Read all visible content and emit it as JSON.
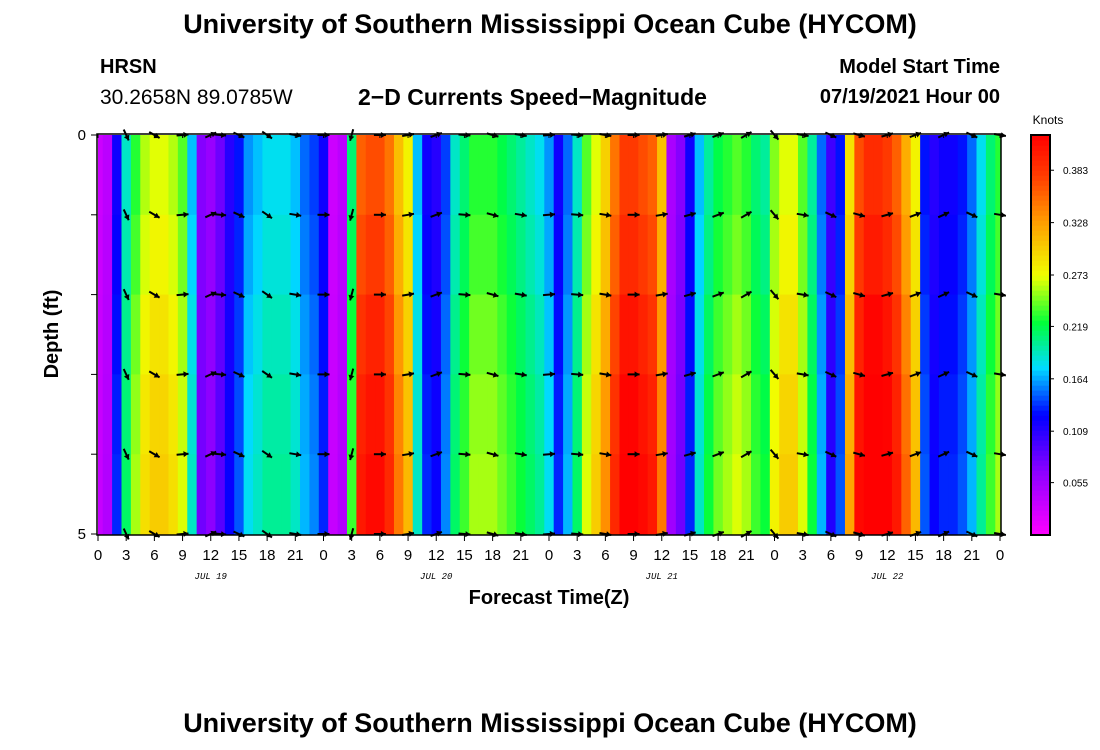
{
  "header": {
    "title": "University of Southern Mississippi Ocean Cube (HYCOM)",
    "footer_title": "University of Southern Mississippi Ocean Cube (HYCOM)",
    "station": "HRSN",
    "coords": "30.2658N  89.0785W",
    "plot_title": "2−D Currents Speed−Magnitude",
    "model_start_label": "Model Start Time",
    "model_start_value": "07/19/2021 Hour 00"
  },
  "chart_data": {
    "type": "heatmap",
    "title": "2-D Currents Speed-Magnitude",
    "xlabel": "Forecast Time(Z)",
    "ylabel": "Depth (ft)",
    "xlim": [
      0,
      96
    ],
    "ylim": [
      0,
      5
    ],
    "y_inverted": true,
    "x_tick_labels": [
      "0",
      "3",
      "6",
      "9",
      "12",
      "15",
      "18",
      "21",
      "0",
      "3",
      "6",
      "9",
      "12",
      "15",
      "18",
      "21",
      "0",
      "3",
      "6",
      "9",
      "12",
      "15",
      "18",
      "21",
      "0",
      "3",
      "6",
      "9",
      "12",
      "15",
      "18",
      "21",
      "0"
    ],
    "y_tick_labels": [
      "0",
      "5"
    ],
    "date_labels": [
      {
        "label": "JUL 19",
        "hour": 12
      },
      {
        "label": "JUL 20",
        "hour": 36
      },
      {
        "label": "JUL 21",
        "hour": 60
      },
      {
        "label": "JUL 22",
        "hour": 84
      }
    ],
    "colorbar": {
      "unit": "Knots",
      "min": 0.0,
      "max": 0.42,
      "tick_labels": [
        "0.055",
        "0.109",
        "0.164",
        "0.219",
        "0.273",
        "0.328",
        "0.383"
      ],
      "tick_values": [
        0.055,
        0.109,
        0.164,
        0.219,
        0.273,
        0.328,
        0.383
      ]
    },
    "depth_levels": [
      0,
      1,
      2,
      3,
      4,
      5
    ],
    "times": [
      0,
      1,
      2,
      3,
      4,
      5,
      6,
      7,
      8,
      9,
      10,
      11,
      12,
      13,
      14,
      15,
      16,
      17,
      18,
      19,
      20,
      21,
      22,
      23,
      24,
      25,
      26,
      27,
      28,
      29,
      30,
      31,
      32,
      33,
      34,
      35,
      36,
      37,
      38,
      39,
      40,
      41,
      42,
      43,
      44,
      45,
      46,
      47,
      48,
      49,
      50,
      51,
      52,
      53,
      54,
      55,
      56,
      57,
      58,
      59,
      60,
      61,
      62,
      63,
      64,
      65,
      66,
      67,
      68,
      69,
      70,
      71,
      72,
      73,
      74,
      75,
      76,
      77,
      78,
      79,
      80,
      81,
      82,
      83,
      84,
      85,
      86,
      87,
      88,
      89,
      90,
      91,
      92,
      93,
      94,
      95,
      96
    ],
    "speed": [
      0.03,
      0.04,
      0.12,
      0.19,
      0.23,
      0.26,
      0.27,
      0.27,
      0.26,
      0.24,
      0.17,
      0.07,
      0.06,
      0.08,
      0.11,
      0.13,
      0.16,
      0.17,
      0.18,
      0.18,
      0.18,
      0.17,
      0.15,
      0.14,
      0.12,
      0.03,
      0.04,
      0.21,
      0.36,
      0.37,
      0.37,
      0.35,
      0.31,
      0.28,
      0.17,
      0.12,
      0.11,
      0.14,
      0.19,
      0.21,
      0.23,
      0.23,
      0.23,
      0.22,
      0.21,
      0.2,
      0.19,
      0.18,
      0.16,
      0.12,
      0.15,
      0.19,
      0.24,
      0.27,
      0.3,
      0.35,
      0.38,
      0.38,
      0.37,
      0.36,
      0.31,
      0.05,
      0.07,
      0.12,
      0.17,
      0.2,
      0.22,
      0.23,
      0.24,
      0.23,
      0.21,
      0.2,
      0.25,
      0.27,
      0.27,
      0.24,
      0.2,
      0.15,
      0.1,
      0.13,
      0.29,
      0.37,
      0.39,
      0.39,
      0.38,
      0.36,
      0.32,
      0.28,
      0.13,
      0.11,
      0.12,
      0.12,
      0.13,
      0.15,
      0.18,
      0.21,
      0.23
    ],
    "depth_factor": [
      1.0,
      1.03,
      1.07,
      1.1,
      1.12,
      1.13
    ],
    "arrow_times": [
      3,
      6,
      9,
      12,
      13,
      15,
      18,
      21,
      24,
      27,
      30,
      33,
      36,
      39,
      42,
      45,
      48,
      51,
      54,
      57,
      60,
      63,
      66,
      69,
      72,
      75,
      78,
      81,
      84,
      87,
      90,
      93,
      96
    ],
    "arrow_directions_deg": [
      155,
      120,
      85,
      65,
      95,
      115,
      125,
      100,
      90,
      195,
      90,
      80,
      70,
      95,
      105,
      100,
      85,
      95,
      100,
      90,
      80,
      75,
      70,
      60,
      140,
      100,
      115,
      105,
      75,
      70,
      65,
      115,
      100
    ]
  }
}
